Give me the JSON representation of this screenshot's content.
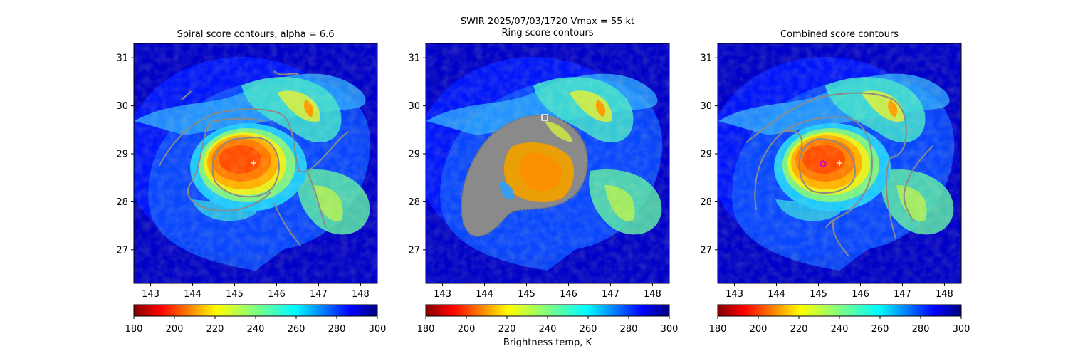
{
  "suptitle": {
    "line1": "SWIR  2025/07/03/1720    Vmax = 55 kt"
  },
  "colorbar": {
    "label": "Brightness temp, K",
    "range": [
      180,
      300
    ],
    "ticks": [
      "180",
      "200",
      "220",
      "240",
      "260",
      "280",
      "300"
    ],
    "colormap": "jet (reversed)"
  },
  "chart_data": [
    {
      "type": "heatmap",
      "title": "Spiral score contours, alpha =  6.6",
      "xlim": [
        142.6,
        148.4
      ],
      "ylim": [
        26.3,
        31.3
      ],
      "xticks": [
        "143",
        "144",
        "145",
        "146",
        "147",
        "148"
      ],
      "yticks": [
        "27",
        "28",
        "29",
        "30",
        "31"
      ],
      "overlay": "spiral score contours (gray)",
      "markers": [
        {
          "type": "plus",
          "color": "#ffffff",
          "lon": 145.5,
          "lat": 28.83
        }
      ]
    },
    {
      "type": "heatmap",
      "title": "Ring score contours",
      "xlim": [
        142.6,
        148.4
      ],
      "ylim": [
        26.3,
        31.3
      ],
      "xticks": [
        "143",
        "144",
        "145",
        "146",
        "147",
        "148"
      ],
      "yticks": [
        "27",
        "28",
        "29",
        "30",
        "31"
      ],
      "overlay": "ring score contours (gray, dense)",
      "markers": [
        {
          "type": "square",
          "color": "#ffffff",
          "lon": 145.45,
          "lat": 29.78
        }
      ]
    },
    {
      "type": "heatmap",
      "title": "Combined score contours",
      "xlim": [
        142.6,
        148.4
      ],
      "ylim": [
        26.3,
        31.3
      ],
      "xticks": [
        "143",
        "144",
        "145",
        "146",
        "147",
        "148"
      ],
      "yticks": [
        "27",
        "28",
        "29",
        "30",
        "31"
      ],
      "overlay": "combined score contours (gray)",
      "markers": [
        {
          "type": "plus",
          "color": "#ffffff",
          "lon": 145.5,
          "lat": 28.83
        },
        {
          "type": "circle",
          "color": "#cc00cc",
          "lon": 145.1,
          "lat": 28.82
        }
      ]
    }
  ]
}
